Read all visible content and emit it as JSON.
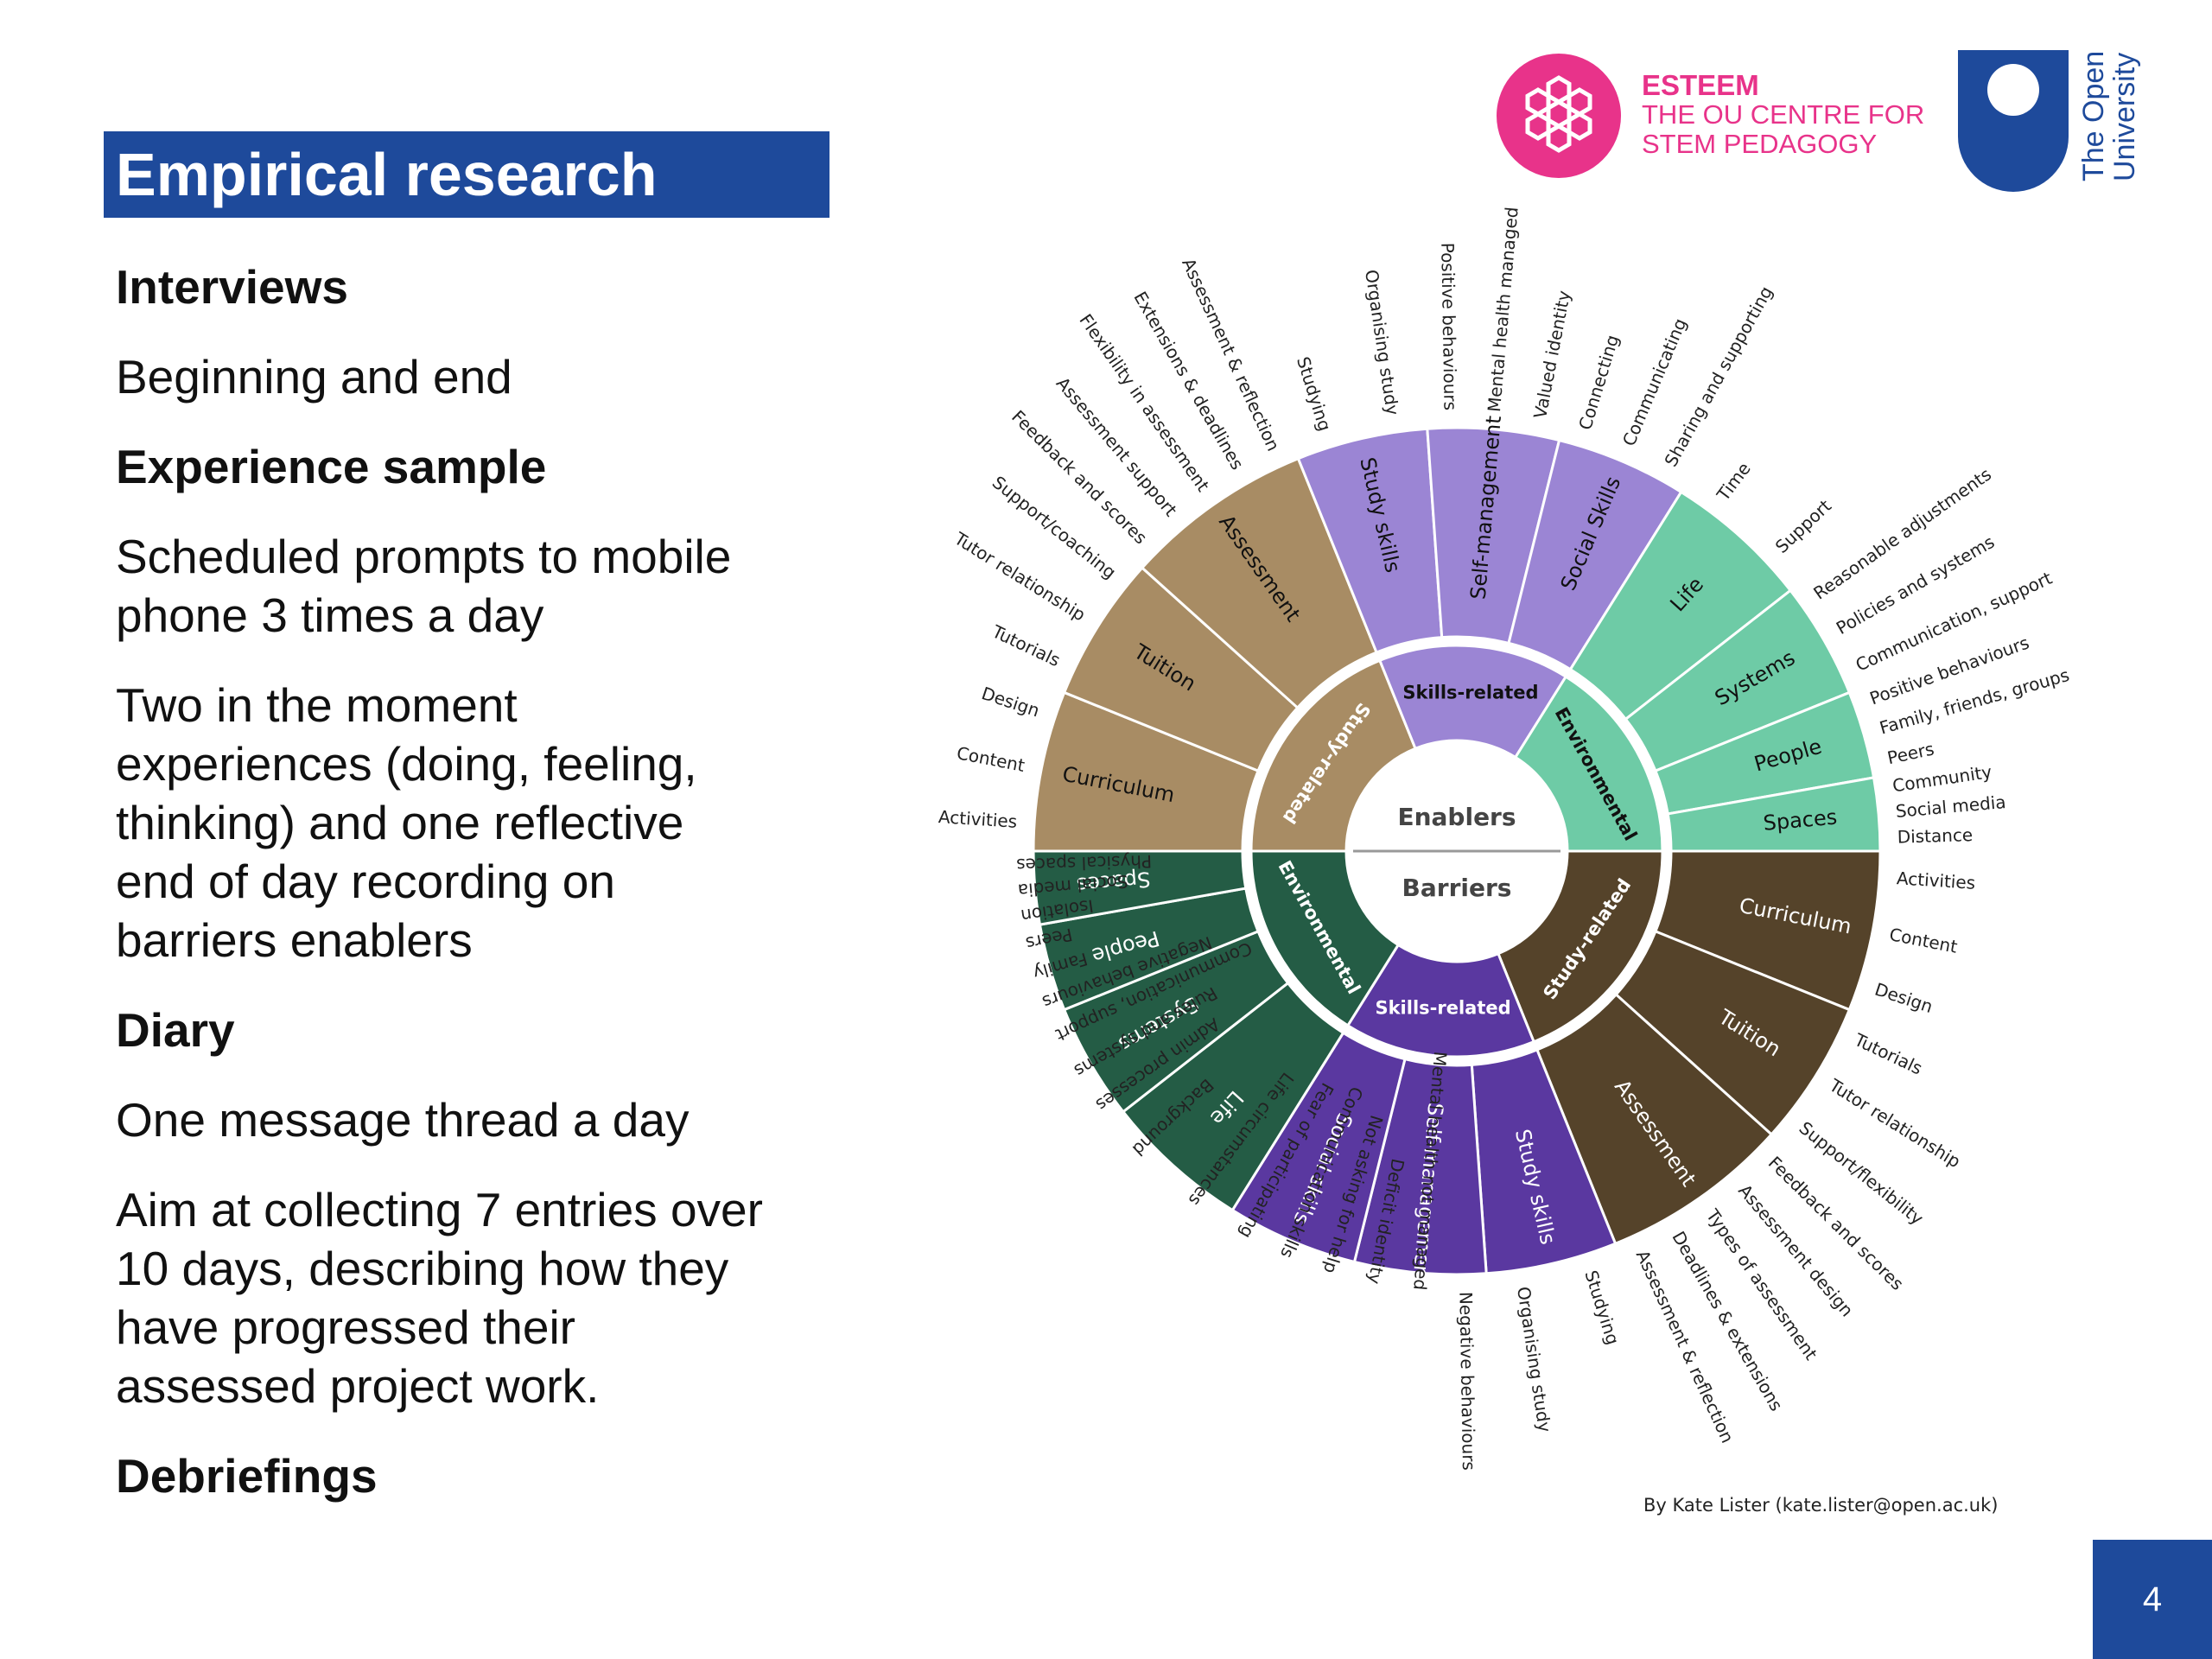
{
  "slide": {
    "title": "Empirical research",
    "page_number": "4",
    "credit": "By Kate Lister (kate.lister@open.ac.uk)"
  },
  "content": [
    {
      "type": "heading",
      "text": "Interviews"
    },
    {
      "type": "para",
      "text": "Beginning and end"
    },
    {
      "type": "heading",
      "text": "Experience sample"
    },
    {
      "type": "para",
      "text": "Scheduled prompts to mobile phone 3 times a day"
    },
    {
      "type": "para",
      "text": "Two in the moment experiences (doing, feeling, thinking) and one reflective end of day recording on barriers enablers"
    },
    {
      "type": "heading",
      "text": "Diary"
    },
    {
      "type": "para",
      "text": "One message thread a day"
    },
    {
      "type": "para",
      "text": "Aim at collecting 7 entries over 10 days, describing how they have progressed their assessed project work."
    },
    {
      "type": "heading",
      "text": "Debriefings"
    }
  ],
  "logos": {
    "esteem_brand": "ESTEEM",
    "esteem_line1": "THE OU CENTRE FOR",
    "esteem_line2": "STEM PEDAGOGY",
    "ou_line1": "The Open",
    "ou_line2": "University",
    "esteem_color": "#e8338a",
    "ou_color": "#1e4a9b"
  },
  "wheel": {
    "center_top": "Enablers",
    "center_bottom": "Barriers",
    "colors": {
      "tan": "#a88c64",
      "lavender": "#9b85d4",
      "mint": "#6ecba6",
      "darkbrown": "#55432a",
      "purple": "#5a38a0",
      "darkgreen": "#245c45"
    },
    "inner": [
      {
        "label": "Study-related",
        "color": "tan"
      },
      {
        "label": "Skills-related",
        "color": "lavender"
      },
      {
        "label": "Environmental",
        "color": "mint"
      },
      {
        "label": "Study-related",
        "color": "darkbrown"
      },
      {
        "label": "Skills-related",
        "color": "purple"
      },
      {
        "label": "Environmental",
        "color": "darkgreen"
      }
    ],
    "middle": [
      {
        "label": "Curriculum",
        "color": "tan",
        "items": [
          "Activities",
          "Content",
          "Design"
        ]
      },
      {
        "label": "Tuition",
        "color": "tan",
        "items": [
          "Tutorials",
          "Tutor relationship",
          "Support/coaching"
        ]
      },
      {
        "label": "Assessment",
        "color": "tan",
        "items": [
          "Feedback and scores",
          "Assessment support",
          "Flexibility in assessment",
          "Extensions & deadlines",
          "Assessment & reflection"
        ]
      },
      {
        "label": "Study skills",
        "color": "lavender",
        "items": [
          "Studying",
          "Organising study"
        ]
      },
      {
        "label": "Self-management",
        "color": "lavender",
        "items": [
          "Positive behaviours",
          "Mental health managed",
          "Valued identity"
        ]
      },
      {
        "label": "Social Skills",
        "color": "lavender",
        "items": [
          "Connecting",
          "Communicating",
          "Sharing and supporting"
        ]
      },
      {
        "label": "Life",
        "color": "mint",
        "items": [
          "Time",
          "Support"
        ]
      },
      {
        "label": "Systems",
        "color": "mint",
        "items": [
          "Reasonable adjustments",
          "Policies and systems",
          "Communication, support"
        ]
      },
      {
        "label": "People",
        "color": "mint",
        "items": [
          "Positive behaviours",
          "Family, friends, groups",
          "Peers"
        ]
      },
      {
        "label": "Spaces",
        "color": "mint",
        "items": [
          "Community",
          "Social media",
          "Distance"
        ]
      },
      {
        "label": "Curriculum",
        "color": "darkbrown",
        "items": [
          "Activities",
          "Content",
          "Design"
        ]
      },
      {
        "label": "Tuition",
        "color": "darkbrown",
        "items": [
          "Tutorials",
          "Tutor relationship",
          "Support/flexibility"
        ]
      },
      {
        "label": "Assessment",
        "color": "darkbrown",
        "items": [
          "Feedback and scores",
          "Assessment design",
          "Types of assessment",
          "Deadlines & extensions",
          "Assessment & reflection"
        ]
      },
      {
        "label": "Study skills",
        "color": "purple",
        "items": [
          "Studying",
          "Organising study"
        ]
      },
      {
        "label": "Self-management",
        "color": "purple",
        "items": [
          "Negative behaviours",
          "Mental health not managed",
          "Deficit identity"
        ]
      },
      {
        "label": "Social skills",
        "color": "purple",
        "items": [
          "Not asking for help",
          "Communication skills",
          "Fear of participating"
        ]
      },
      {
        "label": "Life",
        "color": "darkgreen",
        "items": [
          "Life circumstances",
          "Background"
        ]
      },
      {
        "label": "Systems",
        "color": "darkgreen",
        "items": [
          "Admin processes",
          "Rules and systems",
          "Communication, support"
        ]
      },
      {
        "label": "People",
        "color": "darkgreen",
        "items": [
          "Negative behaviours",
          "Family",
          "Peers"
        ]
      },
      {
        "label": "Spaces",
        "color": "darkgreen",
        "items": [
          "Isolation",
          "Social media",
          "Physical spaces"
        ]
      }
    ]
  }
}
